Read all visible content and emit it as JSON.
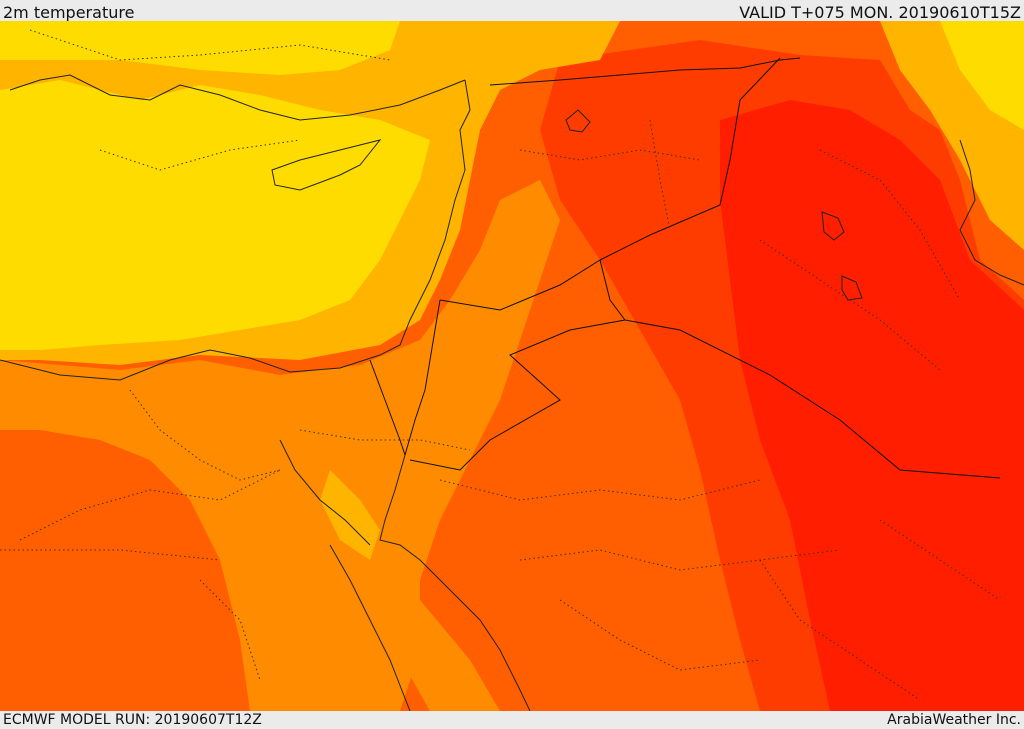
{
  "header": {
    "title": "2m temperature",
    "valid_time": "VALID T+075 MON. 20190610T15Z"
  },
  "footer": {
    "model_run": "ECMWF MODEL RUN: 20190607T12Z",
    "credit": "ArabiaWeather Inc."
  },
  "map": {
    "colors": {
      "yellow": "#ffdc00",
      "gold": "#ffb400",
      "orange": "#ff8c00",
      "dark_orange": "#ff5f00",
      "red_orange": "#ff3c00",
      "red": "#ff1e00"
    }
  }
}
